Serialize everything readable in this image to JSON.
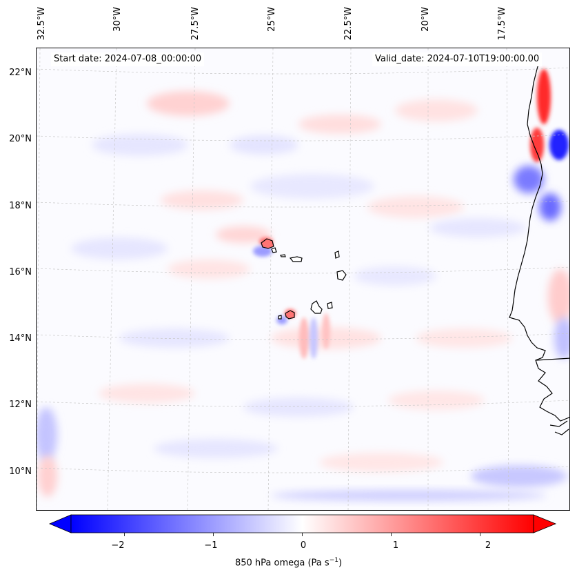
{
  "map": {
    "start_date_text": "Start date: 2024-07-08_00:00:00",
    "valid_date_text": "Valid_date: 2024-07-10T19:00:00.00",
    "variable": "850 hPa omega",
    "units": "Pa s",
    "units_exponent": "−1",
    "longitude_labels": [
      "32.5°W",
      "30°W",
      "27.5°W",
      "25°W",
      "22.5°W",
      "20°W",
      "17.5°W"
    ],
    "latitude_labels": [
      "22°N",
      "20°N",
      "18°N",
      "16°N",
      "14°N",
      "12°N",
      "10°N"
    ]
  },
  "colorbar": {
    "ticks": [
      "−2",
      "−1",
      "0",
      "1",
      "2"
    ],
    "range": [
      -2.6,
      2.6
    ],
    "extend": "both",
    "colormap": "bwr",
    "colors": {
      "low": "#0000ff",
      "mid": "#ffffff",
      "high": "#ff0000"
    }
  },
  "colors": {
    "coastline": "#000000",
    "gridline": "#c8c8c8",
    "background": "#fbfbff"
  }
}
